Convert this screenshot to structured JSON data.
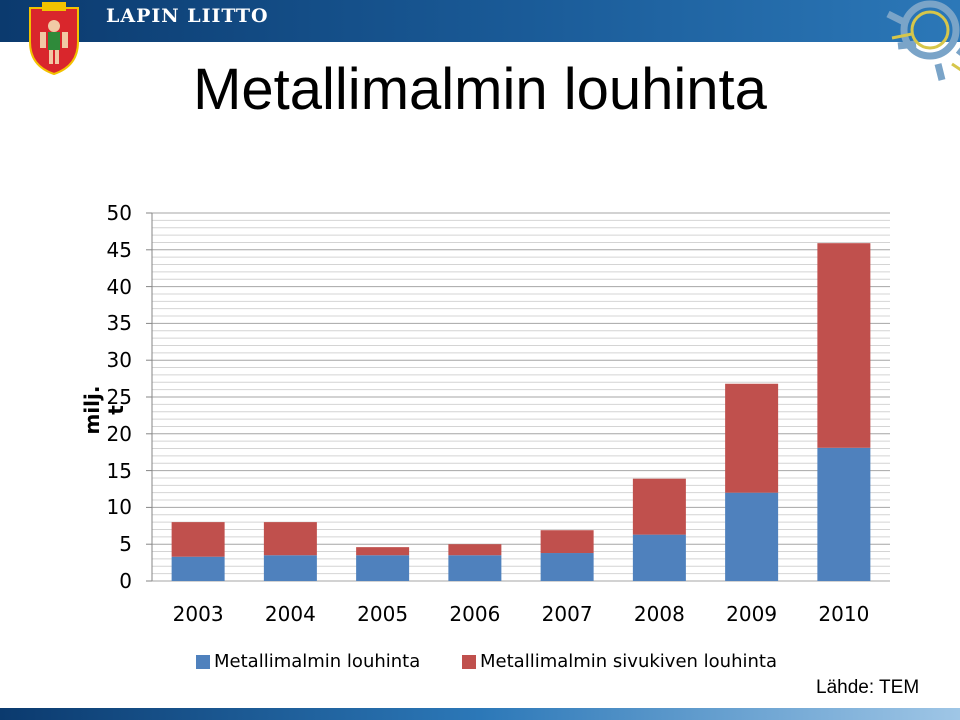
{
  "header": {
    "org_name": "LAPIN LIITTO",
    "brand_color": "#1a5b98"
  },
  "slide": {
    "title": "Metallimalmin louhinta",
    "source": "Lähde: TEM"
  },
  "chart_data": {
    "type": "bar",
    "stacked": true,
    "categories": [
      "2003",
      "2004",
      "2005",
      "2006",
      "2007",
      "2008",
      "2009",
      "2010"
    ],
    "series": [
      {
        "name": "Metallimalmin louhinta",
        "color": "#4f81bd",
        "values": [
          3.3,
          3.5,
          3.5,
          3.5,
          3.8,
          6.3,
          12.0,
          18.1
        ]
      },
      {
        "name": "Metallimalmin sivukiven louhinta",
        "color": "#c0504d",
        "values": [
          4.7,
          4.5,
          1.1,
          1.5,
          3.1,
          7.6,
          14.8,
          27.8
        ]
      }
    ],
    "ylabel": "milj. t",
    "ylim": [
      0,
      50
    ],
    "yticks": [
      "0",
      "5",
      "10",
      "15",
      "20",
      "25",
      "30",
      "35",
      "40",
      "45",
      "50"
    ],
    "grid": true,
    "legend_position": "bottom"
  }
}
